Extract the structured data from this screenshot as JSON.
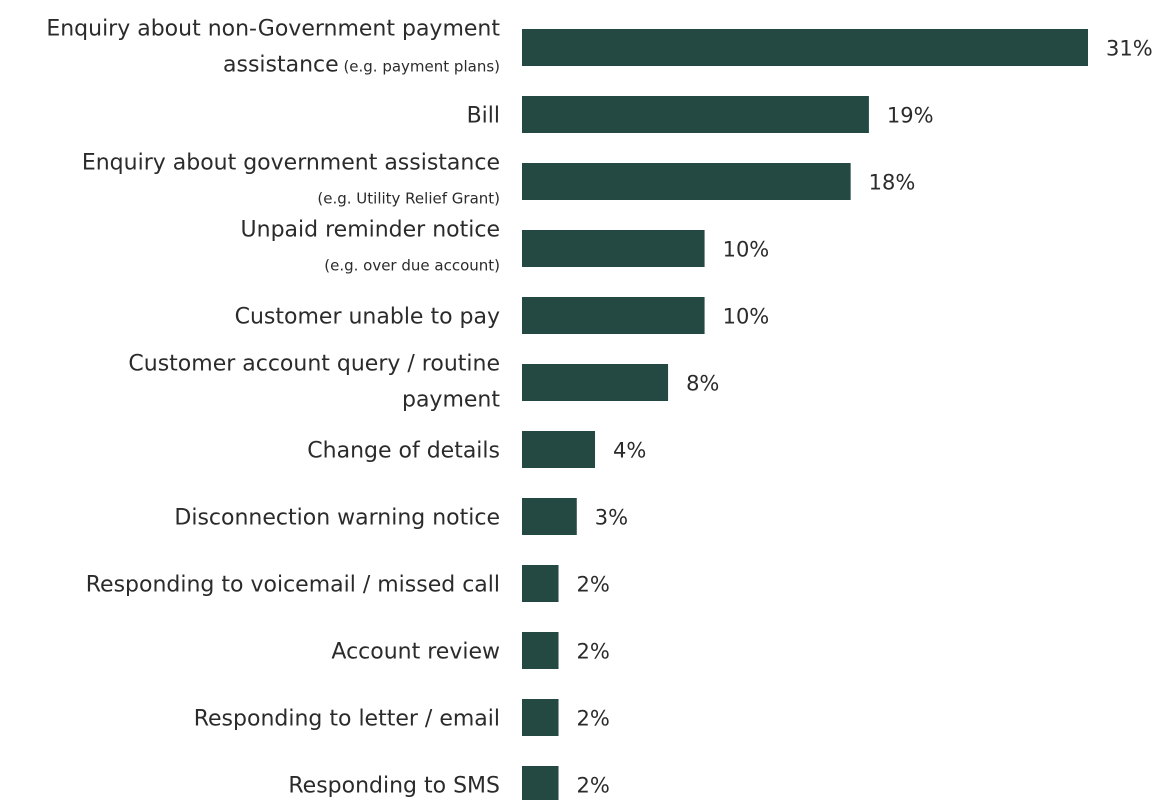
{
  "chart_data": {
    "type": "bar",
    "orientation": "horizontal",
    "bar_color": "#244842",
    "xlim": [
      0,
      31
    ],
    "categories": [
      {
        "lines": [
          {
            "text": "Enquiry about non-Government payment",
            "style": "main"
          },
          {
            "text": "assistance",
            "style": "main",
            "suffix": " (e.g. payment plans)"
          }
        ]
      },
      {
        "lines": [
          {
            "text": "Bill",
            "style": "main"
          }
        ]
      },
      {
        "lines": [
          {
            "text": "Enquiry about government assistance",
            "style": "main"
          },
          {
            "text": "(e.g. Utility Relief Grant)",
            "style": "sub"
          }
        ]
      },
      {
        "lines": [
          {
            "text": "Unpaid reminder notice",
            "style": "main"
          },
          {
            "text": "(e.g. over due account)",
            "style": "sub"
          }
        ]
      },
      {
        "lines": [
          {
            "text": "Customer unable to pay",
            "style": "main"
          }
        ]
      },
      {
        "lines": [
          {
            "text": "Customer account query / routine",
            "style": "main"
          },
          {
            "text": "payment",
            "style": "main"
          }
        ]
      },
      {
        "lines": [
          {
            "text": "Change of details",
            "style": "main"
          }
        ]
      },
      {
        "lines": [
          {
            "text": "Disconnection warning notice",
            "style": "main"
          }
        ]
      },
      {
        "lines": [
          {
            "text": "Responding to voicemail / missed call",
            "style": "main"
          }
        ]
      },
      {
        "lines": [
          {
            "text": "Account review",
            "style": "main"
          }
        ]
      },
      {
        "lines": [
          {
            "text": "Responding to letter / email",
            "style": "main"
          }
        ]
      },
      {
        "lines": [
          {
            "text": "Responding to SMS",
            "style": "main"
          }
        ]
      }
    ],
    "values": [
      31,
      19,
      18,
      10,
      10,
      8,
      4,
      3,
      2,
      2,
      2,
      2
    ],
    "value_labels": [
      "31%",
      "19%",
      "18%",
      "10%",
      "10%",
      "8%",
      "4%",
      "3%",
      "2%",
      "2%",
      "2%",
      "2%"
    ]
  }
}
